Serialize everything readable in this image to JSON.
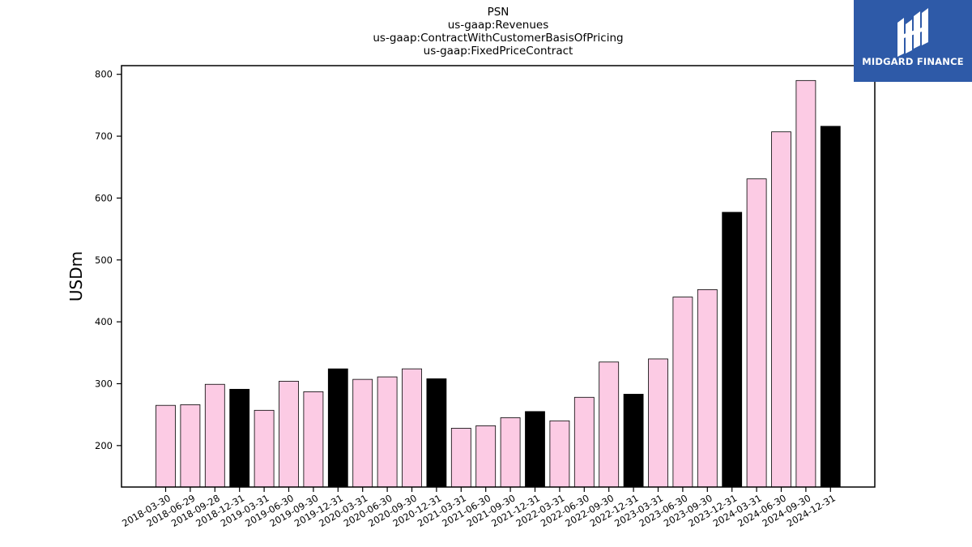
{
  "logo": {
    "text": "MIDGARD FINANCE",
    "mark_icon": "midgard-logo-icon",
    "background": "#2e5aa8"
  },
  "chart_data": {
    "type": "bar",
    "title_lines": [
      "PSN",
      "us-gaap:Revenues",
      "us-gaap:ContractWithCustomerBasisOfPricing",
      "us-gaap:FixedPriceContract"
    ],
    "xlabel": "",
    "ylabel": "USDm",
    "ylim": [
      133,
      814
    ],
    "yticks": [
      200,
      300,
      400,
      500,
      600,
      700,
      800
    ],
    "grid": false,
    "colors": {
      "quarter": "#fccbe4",
      "year_end": "#000000",
      "edge": "#000000"
    },
    "categories": [
      "2018-03-30",
      "2018-06-29",
      "2018-09-28",
      "2018-12-31",
      "2019-03-31",
      "2019-06-30",
      "2019-09-30",
      "2019-12-31",
      "2020-03-31",
      "2020-06-30",
      "2020-09-30",
      "2020-12-31",
      "2021-03-31",
      "2021-06-30",
      "2021-09-30",
      "2021-12-31",
      "2022-03-31",
      "2022-06-30",
      "2022-09-30",
      "2022-12-31",
      "2023-03-31",
      "2023-06-30",
      "2023-09-30",
      "2023-12-31",
      "2024-03-31",
      "2024-06-30",
      "2024-09-30",
      "2024-12-31"
    ],
    "values": [
      265,
      266,
      299,
      291,
      257,
      304,
      287,
      324,
      307,
      311,
      324,
      308,
      228,
      232,
      245,
      255,
      240,
      278,
      335,
      283,
      340,
      440,
      452,
      577,
      631,
      707,
      790,
      716
    ],
    "annual": [
      false,
      false,
      false,
      true,
      false,
      false,
      false,
      true,
      false,
      false,
      false,
      true,
      false,
      false,
      false,
      true,
      false,
      false,
      false,
      true,
      false,
      false,
      false,
      true,
      false,
      false,
      false,
      true
    ]
  }
}
